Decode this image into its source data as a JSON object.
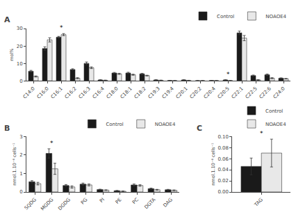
{
  "chart_data": [
    {
      "type": "bar",
      "title": "A",
      "categories": [
        "C14:0",
        "C16:0",
        "C16:1",
        "C16:2",
        "C16:3",
        "C16:4",
        "C18:0",
        "C18:1",
        "C18:2",
        "C19:3",
        "C19:4",
        "C20:1",
        "C20:2",
        "C20:4",
        "C20:5",
        "C22:1",
        "C22:5",
        "C22:6",
        "C24:0"
      ],
      "series": [
        {
          "name": "Control",
          "color": "#1a1a1a",
          "edge_color": "#333333",
          "values": [
            5.5,
            18.5,
            25.0,
            6.5,
            10.0,
            0.5,
            4.5,
            4.5,
            4.0,
            0.5,
            0.2,
            0.5,
            0.1,
            0.2,
            0.5,
            27.5,
            3.0,
            3.5,
            1.5
          ],
          "errors": [
            0.5,
            1.0,
            0.5,
            0.4,
            0.8,
            0.1,
            0.3,
            0.4,
            0.3,
            0.1,
            0.05,
            0.1,
            0.05,
            0.05,
            0.1,
            1.0,
            0.3,
            0.4,
            0.2
          ]
        },
        {
          "name": "NOAOE4",
          "color": "#e8e8e8",
          "edge_color": "#333333",
          "values": [
            2.5,
            23.5,
            26.5,
            1.5,
            7.5,
            0.3,
            4.0,
            3.5,
            3.0,
            0.3,
            0.1,
            0.2,
            0.1,
            0.1,
            0.1,
            24.5,
            0.5,
            1.5,
            1.2
          ],
          "errors": [
            0.3,
            1.2,
            0.6,
            0.3,
            0.5,
            0.1,
            0.3,
            0.3,
            0.2,
            0.1,
            0.05,
            0.1,
            0.05,
            0.05,
            0.1,
            1.5,
            0.2,
            0.3,
            0.15
          ]
        }
      ],
      "ylabel": "mol%",
      "ylim": [
        0,
        30
      ],
      "yticks": [
        0,
        10,
        20,
        30
      ],
      "annotations": [
        {
          "x": 2,
          "text": "*"
        },
        {
          "x": 14,
          "text": "*"
        }
      ],
      "legend": "upper right",
      "grid": false
    },
    {
      "type": "bar",
      "title": "B",
      "categories": [
        "SQDG",
        "MGDG",
        "DGDG",
        "PG",
        "PI",
        "PE",
        "PC",
        "DGTA",
        "DAG"
      ],
      "series": [
        {
          "name": "Control",
          "color": "#1a1a1a",
          "edge_color": "#333333",
          "values": [
            0.55,
            2.08,
            0.35,
            0.42,
            0.13,
            0.07,
            0.38,
            0.18,
            0.12
          ],
          "errors": [
            0.06,
            0.25,
            0.05,
            0.06,
            0.02,
            0.01,
            0.05,
            0.03,
            0.02
          ]
        },
        {
          "name": "NOAOE4",
          "color": "#e8e8e8",
          "edge_color": "#333333",
          "values": [
            0.45,
            1.25,
            0.27,
            0.38,
            0.1,
            0.04,
            0.35,
            0.12,
            0.09
          ],
          "errors": [
            0.07,
            0.3,
            0.06,
            0.05,
            0.015,
            0.01,
            0.04,
            0.02,
            0.02
          ]
        }
      ],
      "ylabel": "nmol.1.10⁻⁶ cells⁻¹",
      "ylim": [
        0,
        3.0
      ],
      "yticks": [
        0,
        1,
        2,
        3
      ],
      "annotations": [
        {
          "x": 1,
          "text": "*"
        }
      ],
      "legend": "upper right",
      "grid": false
    },
    {
      "type": "bar",
      "title": "C",
      "categories": [
        "TAG"
      ],
      "series": [
        {
          "name": "Control",
          "color": "#1a1a1a",
          "edge_color": "#333333",
          "values": [
            0.046
          ],
          "errors": [
            0.015
          ]
        },
        {
          "name": "NOAOE4",
          "color": "#e8e8e8",
          "edge_color": "#333333",
          "values": [
            0.07
          ],
          "errors": [
            0.025
          ]
        }
      ],
      "ylabel": "nmol.1.10⁻⁶ cells⁻¹",
      "ylim": [
        0,
        0.1
      ],
      "yticks": [
        {
          "value": 0,
          "label": "0.00"
        },
        {
          "value": 0.02,
          "label": "0.02"
        },
        {
          "value": 0.04,
          "label": "0.04"
        },
        {
          "value": 0.06,
          "label": "0.06"
        },
        {
          "value": 0.08,
          "label": "0.08"
        },
        {
          "value": 0.1,
          "label": "0.10"
        }
      ],
      "annotations": [
        {
          "x": 0,
          "text": "*"
        }
      ],
      "legend": "upper right",
      "grid": false
    }
  ]
}
